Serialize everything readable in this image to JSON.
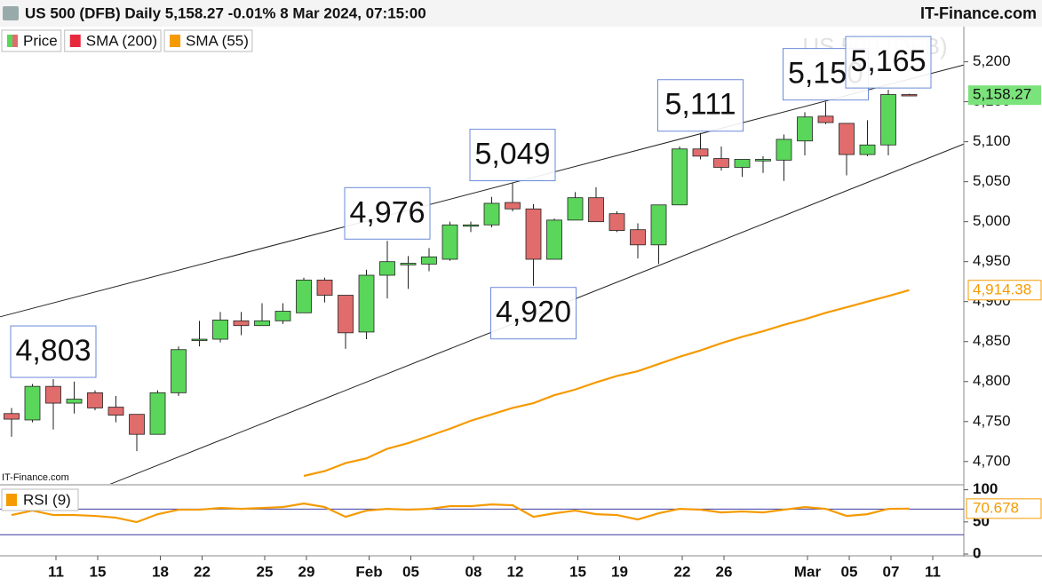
{
  "chart_data": [
    {
      "type": "candlestick",
      "title": "US 500 (DFB) Daily 5,158.27 -0.01% 8 Mar 2024, 07:15:00",
      "source": "IT-Finance.com",
      "watermark": "US 500 (DFB)",
      "credit": "IT-Finance.com",
      "categories": [
        null,
        null,
        "11",
        null,
        "15",
        null,
        null,
        "18",
        null,
        "22",
        null,
        null,
        "25",
        null,
        "29",
        null,
        null,
        "Feb",
        null,
        "05",
        null,
        null,
        "08",
        null,
        "12",
        null,
        null,
        "15",
        null,
        "19",
        null,
        null,
        "22",
        null,
        "26",
        null,
        null,
        null,
        "Mar",
        null,
        "05",
        null,
        "07",
        null,
        "11"
      ],
      "series": [
        {
          "name": "Price",
          "type": "candlestick",
          "up_color": "#5ad65a",
          "down_color": "#e06c6c",
          "last_label": "5,158.27",
          "open": [
            4760,
            4752,
            4794,
            4773,
            4786,
            4768,
            4759,
            4734,
            4786,
            4853,
            4853,
            4876,
            4870,
            4876,
            4886,
            4927,
            4908,
            4862,
            4933,
            4946,
            4947,
            4953,
            4996,
            4996,
            5024,
            5016,
            4953,
            5002,
            5030,
            5010,
            4990,
            4971,
            5021,
            5091,
            5079,
            5068,
            5076,
            5077,
            5101,
            5132,
            5123,
            5084,
            5096,
            5159,
            null
          ],
          "high": [
            4767,
            4797,
            4803,
            4800,
            4789,
            4782,
            4759,
            4789,
            4844,
            4876,
            4887,
            4887,
            4898,
            4898,
            4930,
            4930,
            4908,
            4940,
            4976,
            4957,
            4967,
            5000,
            5000,
            5031,
            5049,
            5022,
            5004,
            5037,
            5043,
            5013,
            4998,
            5021,
            5094,
            5111,
            5094,
            5078,
            5082,
            5109,
            5137,
            5150,
            5123,
            5127,
            5165,
            5160,
            null
          ],
          "low": [
            4731,
            4749,
            4740,
            4760,
            4764,
            4749,
            4713,
            4734,
            4782,
            4844,
            4849,
            4858,
            4870,
            4872,
            4886,
            4899,
            4841,
            4853,
            4904,
            4916,
            4938,
            4951,
            4987,
            4993,
            5013,
            4920,
            4953,
            5002,
            5000,
            4987,
            4954,
            4947,
            5021,
            5078,
            5064,
            5056,
            5061,
            5051,
            5083,
            5122,
            5058,
            5082,
            5083,
            5157,
            null
          ],
          "close": [
            4753,
            4794,
            4773,
            4778,
            4767,
            4758,
            4734,
            4786,
            4840,
            4853,
            4877,
            4870,
            4876,
            4888,
            4927,
            4908,
            4861,
            4933,
            4950,
            4948,
            4956,
            4996,
            4996,
            5023,
            5016,
            4953,
            5002,
            5030,
            5000,
            4989,
            4971,
            5021,
            5091,
            5082,
            5068,
            5078,
            5078,
            5103,
            5131,
            5124,
            5084,
            5096,
            5159,
            5158.27,
            null
          ]
        },
        {
          "name": "SMA (200)",
          "type": "line",
          "color": "#e8283c"
        },
        {
          "name": "SMA (55)",
          "type": "line",
          "color": "#f59a00",
          "last_label": "4,914.38",
          "values": [
            null,
            null,
            null,
            null,
            null,
            null,
            null,
            null,
            null,
            null,
            null,
            null,
            null,
            null,
            4682,
            4688,
            4698,
            4704,
            4716,
            4723,
            4732,
            4741,
            4751,
            4759,
            4767,
            4773,
            4783,
            4790,
            4799,
            4807,
            4813,
            4822,
            4831,
            4839,
            4848,
            4856,
            4863,
            4871,
            4878,
            4886,
            4893,
            4900,
            4907,
            4914.38,
            null
          ]
        }
      ],
      "ylim": [
        4672,
        5244
      ],
      "yticks": [
        {
          "value": 4700,
          "label": "4,700"
        },
        {
          "value": 4750,
          "label": "4,750"
        },
        {
          "value": 4800,
          "label": "4,800"
        },
        {
          "value": 4850,
          "label": "4,850"
        },
        {
          "value": 4900,
          "label": "4,900"
        },
        {
          "value": 4950,
          "label": "4,950"
        },
        {
          "value": 5000,
          "label": "5,000"
        },
        {
          "value": 5050,
          "label": "5,050"
        },
        {
          "value": 5100,
          "label": "5,100"
        },
        {
          "value": 5150,
          "label": "5,150"
        },
        {
          "value": 5200,
          "label": "5,200"
        }
      ],
      "trendlines": [
        {
          "x": [
            -0.55,
            45.6
          ],
          "y": [
            4881,
            5196
          ]
        },
        {
          "x": [
            4.47,
            45.6
          ],
          "y": [
            4669,
            5097
          ]
        }
      ],
      "annotations": [
        {
          "label": "4,803",
          "value": 4803,
          "index": 2,
          "position": "above"
        },
        {
          "label": "4,976",
          "value": 4976,
          "index": 18,
          "position": "above"
        },
        {
          "label": "5,049",
          "value": 5049,
          "index": 24,
          "position": "above"
        },
        {
          "label": "4,920",
          "value": 4920,
          "index": 25,
          "position": "below"
        },
        {
          "label": "5,111",
          "value": 5111,
          "index": 33,
          "position": "above"
        },
        {
          "label": "5,150",
          "value": 5150,
          "index": 39,
          "position": "above"
        },
        {
          "label": "5,165",
          "value": 5165,
          "index": 42,
          "position": "above"
        }
      ]
    },
    {
      "type": "line",
      "series": [
        {
          "name": "RSI (9)",
          "color": "#f59a00",
          "last_label": "70.678",
          "values": [
            60.7,
            67.6,
            60.7,
            60.7,
            59.3,
            56.6,
            49.7,
            62,
            69,
            69,
            71.7,
            70.3,
            71.7,
            73.1,
            78.6,
            73.1,
            57.9,
            67.6,
            70.3,
            69,
            70.3,
            74.5,
            74.5,
            77.2,
            75.9,
            57.9,
            63.4,
            67.6,
            62,
            60.7,
            53.8,
            63.4,
            70.3,
            69,
            64.8,
            66.2,
            64.8,
            69,
            73.1,
            70.3,
            59.3,
            62,
            70.3,
            70.678,
            null
          ]
        }
      ],
      "ylim": [
        0,
        105
      ],
      "yticks": [
        0,
        50,
        100
      ],
      "levels": [
        30,
        70
      ],
      "levels_color": "#3c3ca0"
    }
  ]
}
